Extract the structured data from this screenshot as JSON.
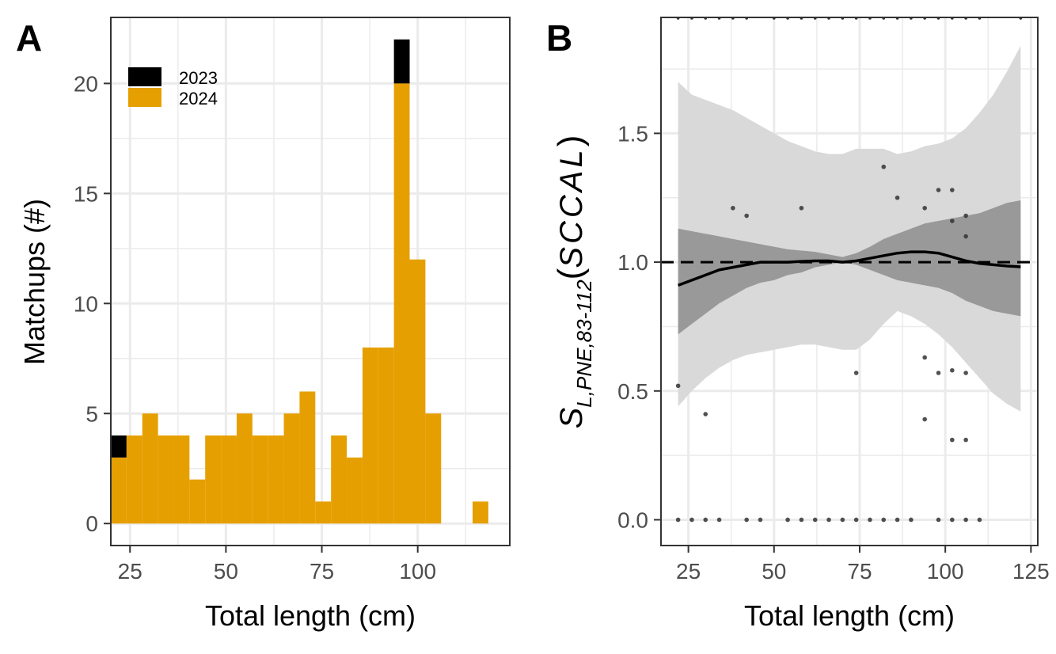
{
  "colors": {
    "bar_2024": "#E69F00",
    "bar_2023": "#000000",
    "grid": "#ebebeb",
    "panel_border": "#333333",
    "tick_text": "#4d4d4d",
    "band_outer": "#d9d9d9",
    "band_inner": "#999999"
  },
  "chart_data": [
    {
      "panel": "A",
      "type": "bar",
      "stacked": true,
      "xlabel": "Total length (cm)",
      "ylabel": "Matchups (#)",
      "xlim": [
        20,
        124
      ],
      "ylim": [
        -1,
        23
      ],
      "x_ticks": [
        "25",
        "50",
        "75",
        "100"
      ],
      "y_ticks": [
        "0",
        "5",
        "10",
        "15",
        "20"
      ],
      "bin_width": 4.1,
      "bin_centers": [
        22.05,
        26.15,
        30.25,
        34.35,
        38.45,
        42.55,
        46.65,
        50.75,
        54.85,
        58.95,
        63.05,
        67.15,
        71.25,
        75.35,
        79.45,
        83.55,
        87.65,
        91.75,
        95.85,
        99.95,
        104.05,
        108.15,
        112.25,
        116.35,
        120.45,
        124.55
      ],
      "legend": {
        "position": "top-left",
        "entries": [
          "2023",
          "2024"
        ]
      },
      "series": [
        {
          "name": "2024",
          "values": [
            3,
            4,
            5,
            4,
            4,
            2,
            4,
            4,
            5,
            4,
            4,
            5,
            6,
            1,
            4,
            3,
            8,
            8,
            20,
            12,
            5,
            0,
            0,
            1,
            0,
            0
          ]
        },
        {
          "name": "2023",
          "values": [
            1,
            0,
            0,
            0,
            0,
            0,
            0,
            0,
            0,
            0,
            0,
            0,
            0,
            0,
            0,
            0,
            0,
            0,
            2,
            0,
            0,
            0,
            0,
            0,
            0,
            0
          ]
        }
      ]
    },
    {
      "panel": "B",
      "type": "line",
      "xlabel": "Total length (cm)",
      "ylabel": {
        "main": "S",
        "subscript": "L,PNE,83-112",
        "arg": "SCCAL"
      },
      "xlim": [
        17,
        127
      ],
      "ylim": [
        -0.1,
        1.95
      ],
      "x_ticks": [
        "25",
        "50",
        "75",
        "100",
        "125"
      ],
      "y_ticks": [
        "0.0",
        "0.5",
        "1.0",
        "1.5"
      ],
      "reference_line": 1.0,
      "curve": {
        "x": [
          22,
          26,
          30,
          34,
          38,
          42,
          46,
          50,
          54,
          58,
          62,
          66,
          70,
          74,
          78,
          82,
          86,
          90,
          94,
          98,
          102,
          106,
          110,
          114,
          118,
          122
        ],
        "y": [
          0.91,
          0.93,
          0.95,
          0.97,
          0.98,
          0.99,
          1.0,
          1.0,
          1.0,
          1.003,
          1.005,
          1.005,
          1.0,
          1.005,
          1.015,
          1.025,
          1.035,
          1.04,
          1.04,
          1.035,
          1.02,
          1.005,
          0.995,
          0.99,
          0.985,
          0.982
        ]
      },
      "band_inner": {
        "lower": [
          0.72,
          0.76,
          0.8,
          0.84,
          0.87,
          0.9,
          0.92,
          0.93,
          0.95,
          0.96,
          0.98,
          0.99,
          1.0,
          0.99,
          0.97,
          0.95,
          0.93,
          0.92,
          0.91,
          0.9,
          0.88,
          0.85,
          0.83,
          0.81,
          0.8,
          0.79
        ],
        "upper": [
          1.13,
          1.12,
          1.11,
          1.1,
          1.09,
          1.08,
          1.07,
          1.06,
          1.05,
          1.045,
          1.04,
          1.03,
          1.02,
          1.035,
          1.06,
          1.09,
          1.11,
          1.13,
          1.15,
          1.16,
          1.17,
          1.18,
          1.19,
          1.21,
          1.23,
          1.24
        ]
      },
      "band_outer": {
        "lower": [
          0.44,
          0.5,
          0.55,
          0.59,
          0.62,
          0.64,
          0.65,
          0.66,
          0.67,
          0.68,
          0.68,
          0.67,
          0.66,
          0.66,
          0.7,
          0.76,
          0.81,
          0.79,
          0.76,
          0.72,
          0.67,
          0.61,
          0.55,
          0.49,
          0.45,
          0.42
        ],
        "upper": [
          1.7,
          1.65,
          1.63,
          1.61,
          1.59,
          1.56,
          1.53,
          1.5,
          1.47,
          1.45,
          1.43,
          1.42,
          1.42,
          1.44,
          1.44,
          1.44,
          1.42,
          1.43,
          1.45,
          1.46,
          1.48,
          1.52,
          1.58,
          1.65,
          1.74,
          1.84
        ]
      },
      "points": [
        {
          "x": 22,
          "y": 0.52
        },
        {
          "x": 30,
          "y": 0.41
        },
        {
          "x": 38,
          "y": 1.21
        },
        {
          "x": 42,
          "y": 1.18
        },
        {
          "x": 58,
          "y": 1.21
        },
        {
          "x": 74,
          "y": 0.57
        },
        {
          "x": 82,
          "y": 1.37
        },
        {
          "x": 86,
          "y": 1.25
        },
        {
          "x": 94,
          "y": 1.21
        },
        {
          "x": 94,
          "y": 0.63
        },
        {
          "x": 94,
          "y": 0.39
        },
        {
          "x": 98,
          "y": 1.28
        },
        {
          "x": 98,
          "y": 0.57
        },
        {
          "x": 102,
          "y": 1.28
        },
        {
          "x": 102,
          "y": 1.16
        },
        {
          "x": 102,
          "y": 0.58
        },
        {
          "x": 102,
          "y": 0.31
        },
        {
          "x": 106,
          "y": 1.18
        },
        {
          "x": 106,
          "y": 1.1
        },
        {
          "x": 106,
          "y": 0.57
        },
        {
          "x": 106,
          "y": 0.31
        },
        {
          "x": 22,
          "y": 0
        },
        {
          "x": 26,
          "y": 0
        },
        {
          "x": 30,
          "y": 0
        },
        {
          "x": 34,
          "y": 0
        },
        {
          "x": 42,
          "y": 0
        },
        {
          "x": 46,
          "y": 0
        },
        {
          "x": 54,
          "y": 0
        },
        {
          "x": 58,
          "y": 0
        },
        {
          "x": 62,
          "y": 0
        },
        {
          "x": 66,
          "y": 0
        },
        {
          "x": 70,
          "y": 0
        },
        {
          "x": 74,
          "y": 0
        },
        {
          "x": 78,
          "y": 0
        },
        {
          "x": 82,
          "y": 0
        },
        {
          "x": 86,
          "y": 0
        },
        {
          "x": 90,
          "y": 0
        },
        {
          "x": 98,
          "y": 0
        },
        {
          "x": 102,
          "y": 0
        },
        {
          "x": 106,
          "y": 0
        },
        {
          "x": 110,
          "y": 0
        }
      ],
      "top_rug_x": [
        22,
        26,
        30,
        34,
        38,
        42,
        50,
        54,
        58,
        62,
        66,
        70,
        74,
        78,
        82,
        86,
        90,
        94,
        98,
        102,
        106,
        110,
        122
      ]
    }
  ]
}
